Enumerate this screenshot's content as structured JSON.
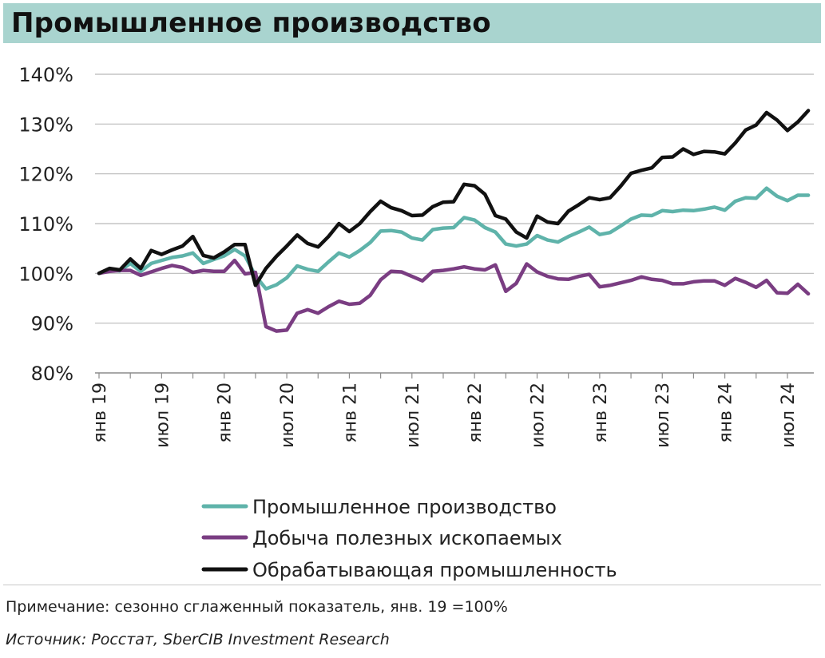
{
  "title": "Промышленное производство",
  "note": "Примечание: сезонно сглаженный показатель, янв. 19 =100%",
  "source": "Источник: Росстат, SberCIB Investment Research",
  "chart_data": {
    "type": "line",
    "title": "Промышленное производство",
    "xlabel": "",
    "ylabel": "",
    "ylim": [
      80,
      140
    ],
    "yticks": [
      80,
      90,
      100,
      110,
      120,
      130,
      140
    ],
    "ytick_labels": [
      "80%",
      "90%",
      "100%",
      "110%",
      "120%",
      "130%",
      "140%"
    ],
    "x_start": "янв 19",
    "n_points": 69,
    "xtick_positions": [
      0,
      6,
      12,
      18,
      24,
      30,
      36,
      42,
      48,
      54,
      60,
      66
    ],
    "xtick_labels": [
      "янв 19",
      "июл 19",
      "янв 20",
      "июл 20",
      "янв 21",
      "июл 21",
      "янв 22",
      "июл 22",
      "янв 23",
      "июл 23",
      "янв 24",
      "июл 24"
    ],
    "grid": true,
    "legend_position": "bottom",
    "series": [
      {
        "name": "Промышленное производство",
        "color": "#5fb3aa",
        "values": [
          100.0,
          100.7,
          100.5,
          102.0,
          100.4,
          102.0,
          102.6,
          103.2,
          103.5,
          104.1,
          102.0,
          102.8,
          103.5,
          104.8,
          103.5,
          99.5,
          96.9,
          97.7,
          99.1,
          101.5,
          100.8,
          100.4,
          102.3,
          104.1,
          103.3,
          104.6,
          106.2,
          108.5,
          108.6,
          108.3,
          107.1,
          106.7,
          108.8,
          109.1,
          109.2,
          111.2,
          110.7,
          109.2,
          108.3,
          105.9,
          105.5,
          105.9,
          107.6,
          106.7,
          106.3,
          107.4,
          108.3,
          109.3,
          107.8,
          108.2,
          109.5,
          110.9,
          111.7,
          111.6,
          112.6,
          112.4,
          112.7,
          112.6,
          112.9,
          113.3,
          112.7,
          114.5,
          115.2,
          115.1,
          117.1,
          115.5,
          114.6,
          115.7,
          115.7
        ]
      },
      {
        "name": "Добыча полезных ископаемых",
        "color": "#7a3d82",
        "values": [
          100.0,
          100.4,
          100.6,
          100.6,
          99.6,
          100.3,
          101.0,
          101.6,
          101.2,
          100.2,
          100.6,
          100.4,
          100.4,
          102.6,
          99.9,
          100.2,
          89.3,
          88.4,
          88.6,
          92.0,
          92.7,
          92.0,
          93.3,
          94.4,
          93.8,
          94.0,
          95.6,
          98.7,
          100.4,
          100.3,
          99.4,
          98.5,
          100.4,
          100.6,
          100.9,
          101.3,
          100.9,
          100.7,
          101.7,
          96.4,
          98.0,
          101.9,
          100.3,
          99.4,
          98.9,
          98.8,
          99.4,
          99.8,
          97.3,
          97.6,
          98.1,
          98.6,
          99.3,
          98.8,
          98.6,
          97.9,
          97.9,
          98.3,
          98.5,
          98.5,
          97.6,
          99.0,
          98.2,
          97.2,
          98.6,
          96.1,
          96.0,
          97.8,
          95.9
        ]
      },
      {
        "name": "Обрабатывающая промышленность",
        "color": "#111111",
        "values": [
          100.0,
          101.0,
          100.7,
          102.9,
          101.0,
          104.6,
          103.8,
          104.7,
          105.5,
          107.4,
          103.6,
          103.1,
          104.3,
          105.8,
          105.8,
          97.6,
          101.0,
          103.4,
          105.5,
          107.7,
          106.0,
          105.3,
          107.4,
          110.0,
          108.4,
          110.0,
          112.4,
          114.5,
          113.2,
          112.6,
          111.6,
          111.7,
          113.4,
          114.3,
          114.4,
          117.9,
          117.6,
          115.9,
          111.6,
          110.9,
          108.3,
          107.1,
          111.5,
          110.3,
          110.0,
          112.5,
          113.8,
          115.2,
          114.8,
          115.2,
          117.5,
          120.1,
          120.7,
          121.2,
          123.3,
          123.4,
          125.0,
          123.9,
          124.5,
          124.4,
          124.0,
          126.2,
          128.8,
          129.8,
          132.3,
          130.8,
          128.7,
          130.4,
          132.7
        ]
      }
    ]
  }
}
